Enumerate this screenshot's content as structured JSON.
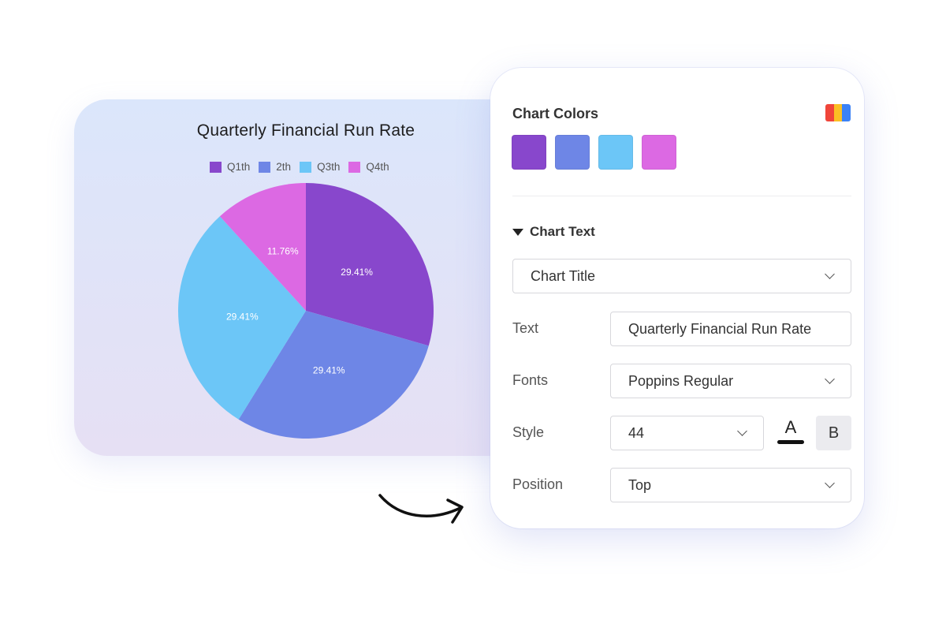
{
  "chart_data": {
    "type": "pie",
    "title": "Quarterly Financial Run Rate",
    "categories": [
      "Q1th",
      "2th",
      "Q3th",
      "Q4th"
    ],
    "values": [
      29.41,
      29.41,
      29.41,
      11.76
    ],
    "labels": [
      "29.41%",
      "29.41%",
      "29.41%",
      "11.76%"
    ],
    "colors": [
      "#8847cc",
      "#6e86e6",
      "#6cc6f7",
      "#dc69e3"
    ],
    "legend_position": "top",
    "start_angle": "12 o'clock",
    "direction": "clockwise"
  },
  "panel": {
    "colors_heading": "Chart Colors",
    "palette_icon": "palette-icon",
    "palette_icon_colors": [
      "#f0453a",
      "#fbbf24",
      "#3b82f6"
    ],
    "swatches": [
      "#8847cc",
      "#6e86e6",
      "#6cc6f7",
      "#dc69e3"
    ],
    "chart_text_heading": "Chart Text",
    "element_select": "Chart Title",
    "text_label": "Text",
    "text_value": "Quarterly Financial Run Rate",
    "fonts_label": "Fonts",
    "fonts_value": "Poppins Regular",
    "style_label": "Style",
    "size_value": "44",
    "color_button_glyph": "A",
    "bold_button_glyph": "B",
    "position_label": "Position",
    "position_value": "Top"
  }
}
